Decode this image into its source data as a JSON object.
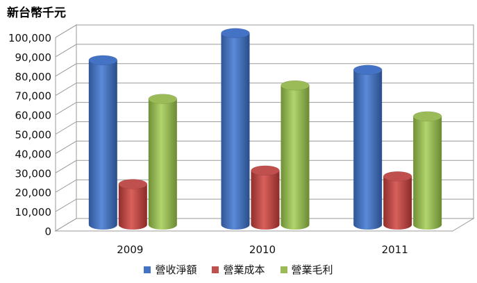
{
  "chart_data": {
    "type": "bar",
    "unit_label": "新台幣千元",
    "categories": [
      "2009",
      "2010",
      "2011"
    ],
    "series": [
      {
        "name": "營收淨額",
        "color": "#4472c4",
        "values": [
          85000,
          99000,
          80000
        ]
      },
      {
        "name": "營業成本",
        "color": "#c0504d",
        "values": [
          21000,
          28000,
          25000
        ]
      },
      {
        "name": "營業毛利",
        "color": "#9bbb59",
        "values": [
          65000,
          72000,
          56000
        ]
      }
    ],
    "yticks": [
      "0",
      "10,000",
      "20,000",
      "30,000",
      "40,000",
      "50,000",
      "60,000",
      "70,000",
      "80,000",
      "90,000",
      "100,000"
    ],
    "ylim": [
      0,
      100000
    ],
    "grid": true,
    "legend_position": "bottom"
  }
}
